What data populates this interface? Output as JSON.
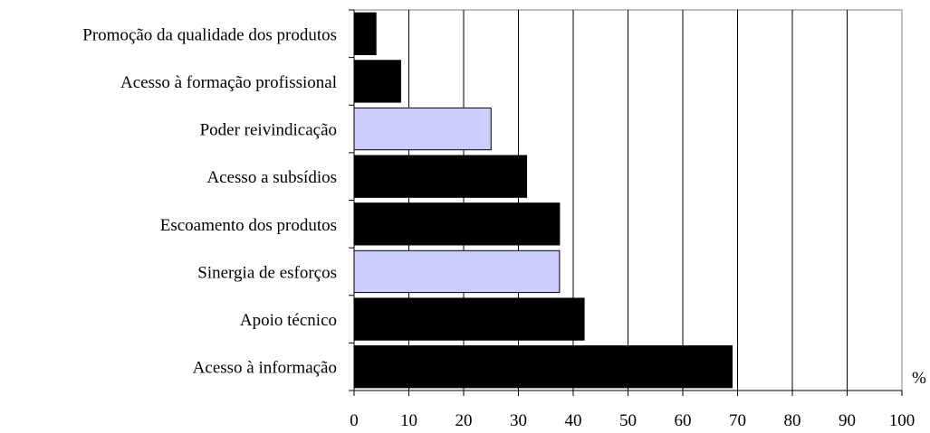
{
  "chart_data": {
    "type": "bar",
    "orientation": "horizontal",
    "title": "",
    "xlabel": "%",
    "ylabel": "",
    "xlim": [
      0,
      100
    ],
    "x_ticks": [
      "0",
      "10",
      "20",
      "30",
      "40",
      "50",
      "60",
      "70",
      "80",
      "90",
      "100"
    ],
    "grid": "vertical",
    "categories": [
      "Promoção da qualidade dos produtos",
      "Acesso à formação profissional",
      "Poder reivindicação",
      "Acesso a subsídios",
      "Escoamento dos produtos",
      "Sinergia de esforços",
      "Apoio técnico",
      "Acesso à informação"
    ],
    "values": [
      4,
      8.5,
      25,
      31.5,
      37.5,
      37.5,
      42,
      69
    ],
    "bar_colors": [
      "#000000",
      "#000000",
      "#ccccff",
      "#000000",
      "#000000",
      "#ccccff",
      "#000000",
      "#000000"
    ]
  }
}
